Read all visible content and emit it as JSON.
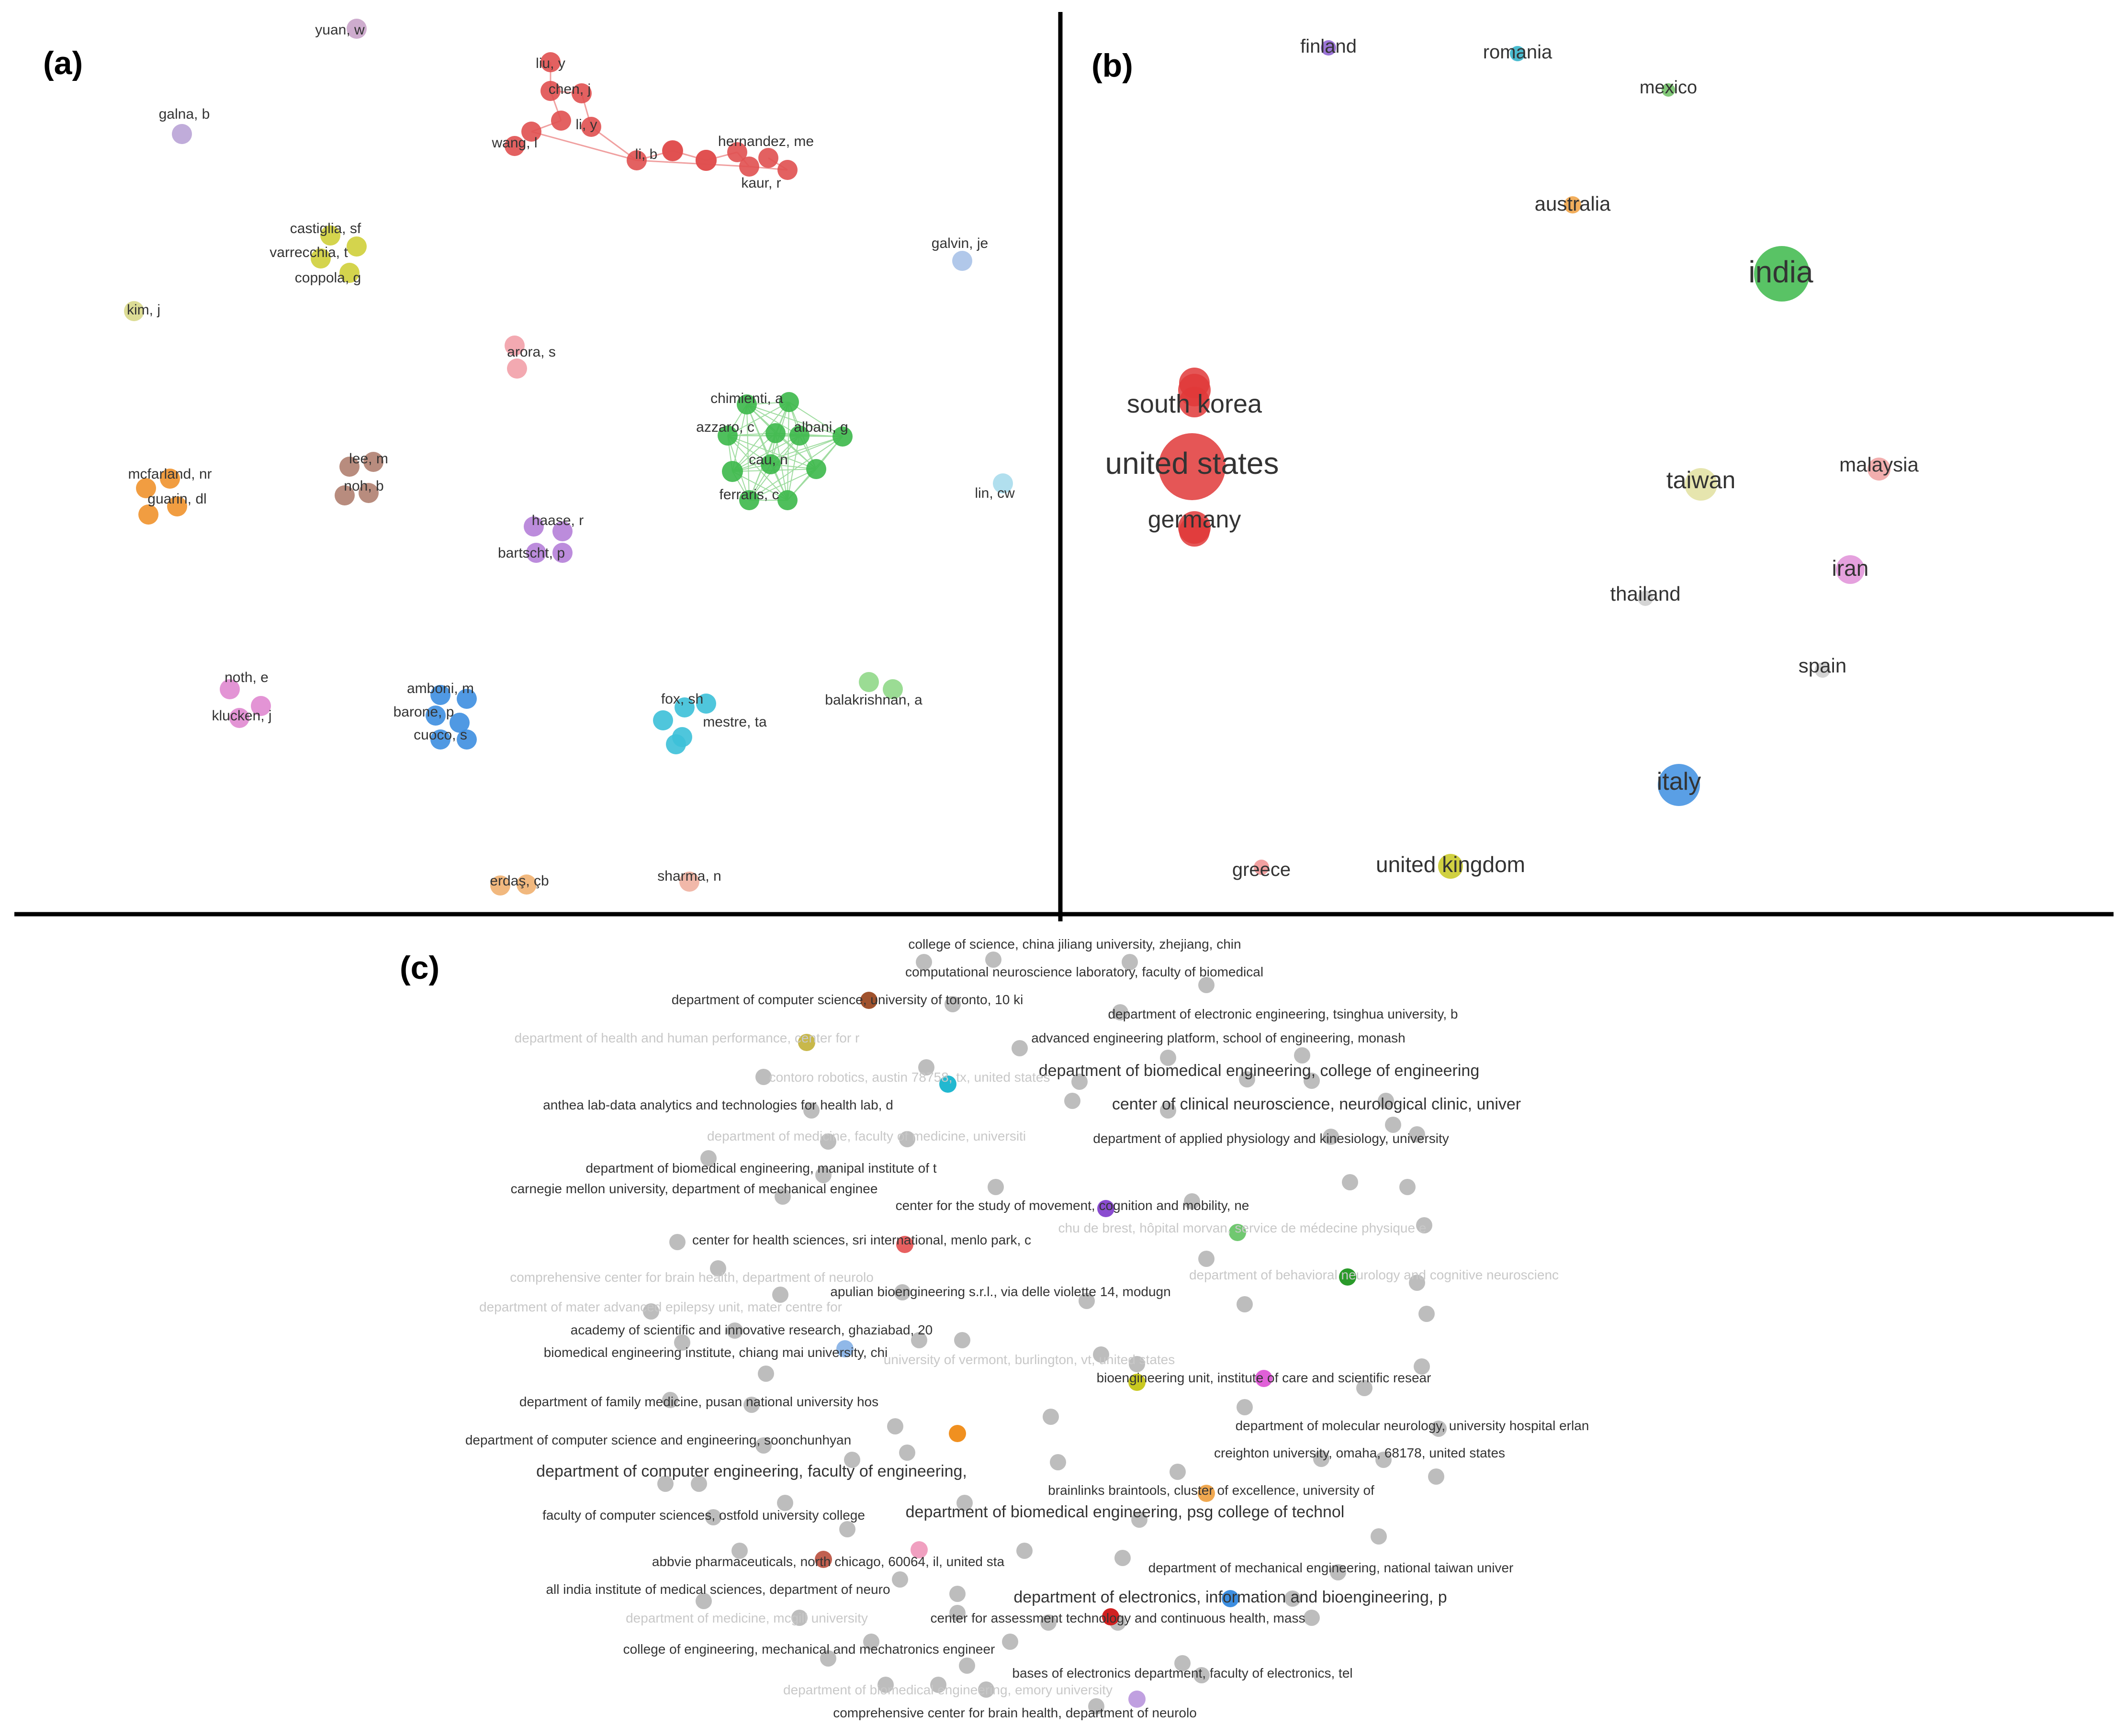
{
  "panels": {
    "a": {
      "label": "(a)"
    },
    "b": {
      "label": "(b)"
    },
    "c": {
      "label": "(c)"
    }
  },
  "author_network": {
    "nodes": [
      {
        "text": "yuan, w",
        "color": "#c9a3c9"
      },
      {
        "text": "liu, y",
        "color": "#e05050"
      },
      {
        "text": "chen, j",
        "color": "#e05050"
      },
      {
        "text": "li, y",
        "color": "#e05050"
      },
      {
        "text": "wang, l",
        "color": "#e05050"
      },
      {
        "text": "hernandez, me",
        "color": "#e05050"
      },
      {
        "text": "li, b",
        "color": "#e05050"
      },
      {
        "text": "kaur, r",
        "color": "#e05050"
      },
      {
        "text": "galna, b",
        "color": "#b9a3d6"
      },
      {
        "text": "galvin, je",
        "color": "#a9c2e8"
      },
      {
        "text": "castiglia, sf",
        "color": "#cfcf3a"
      },
      {
        "text": "varrecchia, t",
        "color": "#cfcf3a"
      },
      {
        "text": "coppola, g",
        "color": "#cfcf3a"
      },
      {
        "text": "kim, j",
        "color": "#d8d88a"
      },
      {
        "text": "arora, s",
        "color": "#f2a0a8"
      },
      {
        "text": "chimienti, a",
        "color": "#3cb84a"
      },
      {
        "text": "azzaro, c",
        "color": "#3cb84a"
      },
      {
        "text": "albani, g",
        "color": "#3cb84a"
      },
      {
        "text": "cau, n",
        "color": "#3cb84a"
      },
      {
        "text": "ferraris, c",
        "color": "#3cb84a"
      },
      {
        "text": "mcfarland, nr",
        "color": "#f0922c"
      },
      {
        "text": "guarin, dl",
        "color": "#f0922c"
      },
      {
        "text": "lee, m",
        "color": "#b08070"
      },
      {
        "text": "noh, b",
        "color": "#b08070"
      },
      {
        "text": "lin, cw",
        "color": "#a8dcec"
      },
      {
        "text": "haase, r",
        "color": "#b57fd8"
      },
      {
        "text": "bartscht, p",
        "color": "#b57fd8"
      },
      {
        "text": "noth, e",
        "color": "#e088d0"
      },
      {
        "text": "klucken, j",
        "color": "#e088d0"
      },
      {
        "text": "amboni, m",
        "color": "#3d8ee0"
      },
      {
        "text": "barone, p",
        "color": "#3d8ee0"
      },
      {
        "text": "cuoco, s",
        "color": "#3d8ee0"
      },
      {
        "text": "fox, sh",
        "color": "#3cc0d8"
      },
      {
        "text": "mestre, ta",
        "color": "#3cc0d8"
      },
      {
        "text": "balakrishnan, a",
        "color": "#90d888"
      },
      {
        "text": "erdaş, çb",
        "color": "#f0b070"
      },
      {
        "text": "sharma, n",
        "color": "#f0b0a0"
      }
    ]
  },
  "country_network": {
    "nodes": [
      {
        "text": "finland",
        "color": "#8a5cd0"
      },
      {
        "text": "romania",
        "color": "#2bb0c8"
      },
      {
        "text": "mexico",
        "color": "#6cc060"
      },
      {
        "text": "australia",
        "color": "#f0a040"
      },
      {
        "text": "india",
        "color": "#3cb84a"
      },
      {
        "text": "south korea",
        "color": "#e03838"
      },
      {
        "text": "united states",
        "color": "#e03838"
      },
      {
        "text": "germany",
        "color": "#e03838"
      },
      {
        "text": "taiwan",
        "color": "#e2e0a0"
      },
      {
        "text": "malaysia",
        "color": "#f0a0a0"
      },
      {
        "text": "iran",
        "color": "#e090d8"
      },
      {
        "text": "thailand",
        "color": "#cccccc"
      },
      {
        "text": "spain",
        "color": "#cccccc"
      },
      {
        "text": "italy",
        "color": "#3d8ee0"
      },
      {
        "text": "greece",
        "color": "#f09090"
      },
      {
        "text": "united kingdom",
        "color": "#c8c820"
      }
    ]
  },
  "institution_network": {
    "labels": [
      {
        "text": "college of science, china jiliang university, zhejiang, chin",
        "faded": false
      },
      {
        "text": "computational neuroscience laboratory, faculty of biomedical",
        "faded": false
      },
      {
        "text": "department of computer science, university of toronto, 10 ki",
        "faded": false
      },
      {
        "text": "department of electronic engineering, tsinghua university, b",
        "faded": false
      },
      {
        "text": "department of health and human performance, center for r",
        "faded": true
      },
      {
        "text": "advanced engineering platform, school of engineering, monash",
        "faded": false
      },
      {
        "text": "department of biomedical engineering, college of engineering",
        "faded": false
      },
      {
        "text": "contoro robotics, austin 78758, tx, united states",
        "faded": true
      },
      {
        "text": "anthea lab-data analytics and technologies for health lab, d",
        "faded": false
      },
      {
        "text": "center of clinical neuroscience, neurological clinic, univer",
        "faded": false
      },
      {
        "text": "department of medicine, faculty of medicine, universiti",
        "faded": true
      },
      {
        "text": "department of applied physiology and kinesiology, university",
        "faded": false
      },
      {
        "text": "department of biomedical engineering, manipal institute of t",
        "faded": false
      },
      {
        "text": "carnegie mellon university, department of mechanical enginee",
        "faded": false
      },
      {
        "text": "center for the study of movement, cognition and mobility, ne",
        "faded": false
      },
      {
        "text": "chu de brest, hôpital morvan, service de médecine physique e",
        "faded": true
      },
      {
        "text": "center for health sciences, sri international, menlo park, c",
        "faded": false
      },
      {
        "text": "comprehensive center for brain health, department of neurolo",
        "faded": true
      },
      {
        "text": "department of behavioral neurology and cognitive neuroscienc",
        "faded": true
      },
      {
        "text": "apulian bioengineering s.r.l., via delle violette 14, modugn",
        "faded": false
      },
      {
        "text": "department of mater advanced epilepsy unit, mater centre for",
        "faded": true
      },
      {
        "text": "academy of scientific and innovative research, ghaziabad, 20",
        "faded": false
      },
      {
        "text": "biomedical engineering institute, chiang mai university, chi",
        "faded": false
      },
      {
        "text": "university of vermont, burlington, vt, united states",
        "faded": true
      },
      {
        "text": "bioengineering unit, institute of care and scientific resear",
        "faded": false
      },
      {
        "text": "department of family medicine, pusan national university hos",
        "faded": false
      },
      {
        "text": "department of molecular neurology, university hospital erlan",
        "faded": false
      },
      {
        "text": "department of computer science and engineering, soonchunhyan",
        "faded": false
      },
      {
        "text": "creighton university, omaha, 68178, united states",
        "faded": false
      },
      {
        "text": "department of computer engineering, faculty of engineering,",
        "faded": false
      },
      {
        "text": "brainlinks braintools, cluster of excellence, university of",
        "faded": false
      },
      {
        "text": "faculty of computer sciences, ostfold university college",
        "faded": false
      },
      {
        "text": "department of biomedical engineering, psg college of technol",
        "faded": false
      },
      {
        "text": "abbvie pharmaceuticals, north chicago, 60064, il, united sta",
        "faded": false
      },
      {
        "text": "department of mechanical engineering, national taiwan univer",
        "faded": false
      },
      {
        "text": "all india institute of medical sciences, department of neuro",
        "faded": false
      },
      {
        "text": "department of electronics, information and bioengineering, p",
        "faded": false
      },
      {
        "text": "department of medicine, mcgill university",
        "faded": true
      },
      {
        "text": "center for assessment technology and continuous health, mass",
        "faded": false
      },
      {
        "text": "college of engineering, mechanical and mechatronics engineer",
        "faded": false
      },
      {
        "text": "bases of electronics department, faculty of electronics, tel",
        "faded": false
      },
      {
        "text": "department of biomedical engineering, emory university",
        "faded": true
      },
      {
        "text": "comprehensive center for brain health, department of neurolo",
        "faded": false
      }
    ],
    "colored_nodes": [
      {
        "name": "brown-node",
        "color": "#a0522d"
      },
      {
        "name": "olive-node",
        "color": "#c8b84a"
      },
      {
        "name": "cyan-node",
        "color": "#22b8d0"
      },
      {
        "name": "purple-node",
        "color": "#8a4cd0"
      },
      {
        "name": "light-green-node",
        "color": "#70c870"
      },
      {
        "name": "salmon-node",
        "color": "#e86060"
      },
      {
        "name": "green-node",
        "color": "#2a9a2a"
      },
      {
        "name": "light-blue-node",
        "color": "#90b8e8"
      },
      {
        "name": "yellow-node",
        "color": "#c8c820"
      },
      {
        "name": "magenta-node",
        "color": "#e060d8"
      },
      {
        "name": "orange-node",
        "color": "#f09020"
      },
      {
        "name": "orange-node-2",
        "color": "#f0a850"
      },
      {
        "name": "pink-node",
        "color": "#f0a0c0"
      },
      {
        "name": "brown-node-2",
        "color": "#c06050"
      },
      {
        "name": "blue-node",
        "color": "#3d8ee0"
      },
      {
        "name": "red-node",
        "color": "#d02020"
      },
      {
        "name": "lavender-node",
        "color": "#c0a0e0"
      }
    ]
  }
}
